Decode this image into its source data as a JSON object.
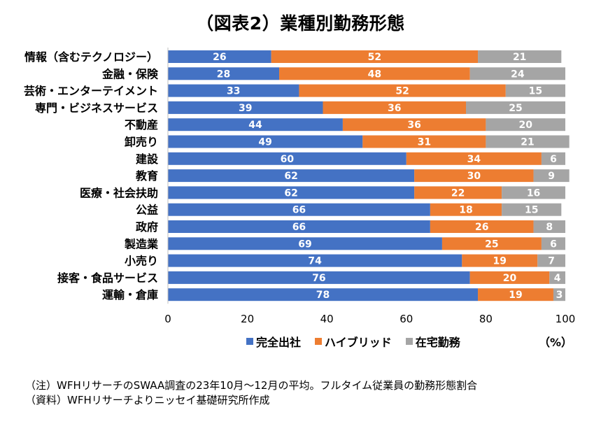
{
  "title": "（図表2）業種別勤務形態",
  "chart_data": {
    "type": "bar",
    "orientation": "horizontal",
    "stacked": true,
    "categories": [
      "情報（含むテクノロジー）",
      "金融・保険",
      "芸術・エンターテイメント",
      "専門・ビジネスサービス",
      "不動産",
      "卸売り",
      "建設",
      "教育",
      "医療・社会扶助",
      "公益",
      "政府",
      "製造業",
      "小売り",
      "接客・食品サービス",
      "運輸・倉庫"
    ],
    "series": [
      {
        "name": "完全出社",
        "color": "#4472C4",
        "values": [
          26,
          28,
          33,
          39,
          44,
          49,
          60,
          62,
          62,
          66,
          66,
          69,
          74,
          76,
          78
        ]
      },
      {
        "name": "ハイブリッド",
        "color": "#ED7D31",
        "values": [
          52,
          48,
          52,
          36,
          36,
          31,
          34,
          30,
          22,
          18,
          26,
          25,
          19,
          20,
          19
        ]
      },
      {
        "name": "在宅勤務",
        "color": "#A5A5A5",
        "values": [
          21,
          24,
          15,
          25,
          20,
          21,
          6,
          9,
          16,
          15,
          8,
          6,
          7,
          4,
          3
        ]
      }
    ],
    "xlim": [
      0,
      100
    ],
    "xticks": [
      "0",
      "20",
      "40",
      "60",
      "80",
      "100"
    ],
    "unit_label": "（%）",
    "grid": false,
    "legend_position": "bottom"
  },
  "notes": [
    "（注）WFHリサーチのSWAA調査の23年10月～12月の平均。フルタイム従業員の勤務形態割合",
    "（資料）WFHリサーチよりニッセイ基礎研究所作成"
  ]
}
